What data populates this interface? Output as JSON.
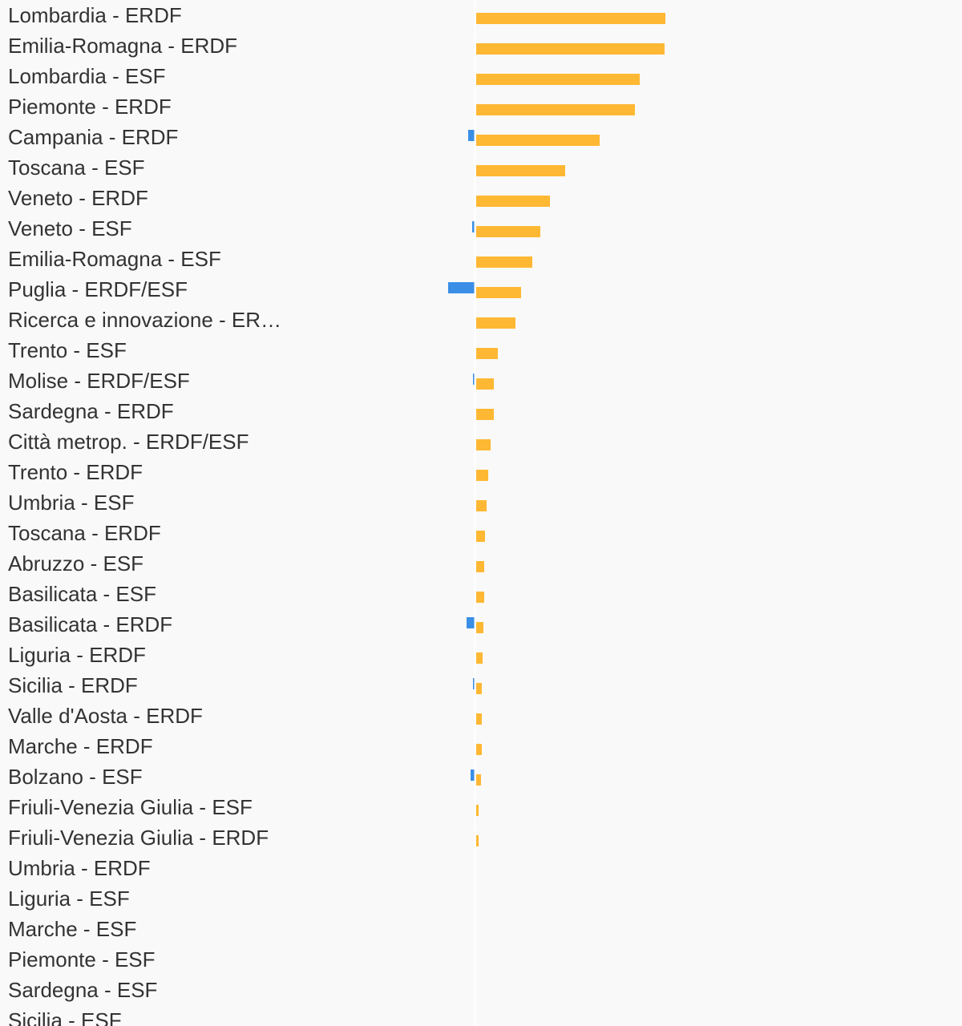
{
  "chart_data": {
    "type": "bar",
    "orientation": "horizontal",
    "title": "",
    "xlabel": "",
    "ylabel": "",
    "grid": false,
    "legend": "none",
    "categories": [
      "Lombardia - ERDF",
      "Emilia-Romagna - ERDF",
      "Lombardia - ESF",
      "Piemonte - ERDF",
      "Campania - ERDF",
      "Toscana - ESF",
      "Veneto - ERDF",
      "Veneto - ESF",
      "Emilia-Romagna - ESF",
      "Puglia - ERDF/ESF",
      "Ricerca e innovazione - ER…",
      "Trento - ESF",
      "Molise - ERDF/ESF",
      "Sardegna - ERDF",
      "Città metrop. - ERDF/ESF",
      "Trento - ERDF",
      "Umbria - ESF",
      "Toscana - ERDF",
      "Abruzzo - ESF",
      "Basilicata - ESF",
      "Basilicata - ERDF",
      "Liguria - ERDF",
      "Sicilia - ERDF",
      "Valle d'Aosta - ERDF",
      "Marche - ERDF",
      "Bolzano - ESF",
      "Friuli-Venezia Giulia - ESF",
      "Friuli-Venezia Giulia - ERDF",
      "Umbria - ERDF",
      "Liguria - ESF",
      "Marche - ESF",
      "Piemonte - ESF",
      "Sardegna - ESF",
      "Sicilia - ESF"
    ],
    "series": [
      {
        "color": "#3a8ee6",
        "values": [
          0,
          0,
          0,
          0,
          -8,
          0,
          0,
          -3,
          0,
          -33,
          0,
          0,
          -2,
          0,
          0,
          0,
          0,
          0,
          0,
          0,
          -10,
          0,
          -2,
          0,
          0,
          -5,
          0,
          0,
          0,
          0,
          0,
          0,
          0,
          0
        ]
      },
      {
        "color": "#ffb833",
        "values": [
          236,
          235,
          204,
          198,
          154,
          111,
          92,
          80,
          70,
          56,
          49,
          27,
          22,
          22,
          18,
          15,
          13,
          11,
          10,
          10,
          9,
          8,
          7,
          7,
          7,
          6,
          3,
          3,
          0,
          0,
          0,
          0,
          0,
          0
        ]
      }
    ],
    "xlim": [
      -592,
      608
    ],
    "axis_line_color": "#ffffff"
  }
}
